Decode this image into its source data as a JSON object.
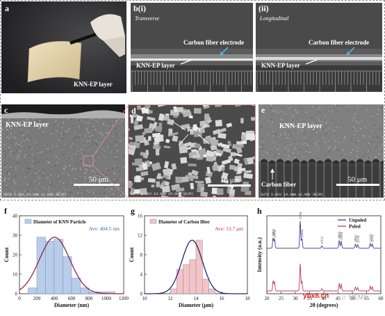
{
  "panels": {
    "a": {
      "label": "a",
      "caption": "KNN-EP layer"
    },
    "b1": {
      "label": "b(i)",
      "orientation": "Transverse",
      "electrode": "Carbon fiber electrode",
      "layer": "KNN-EP layer"
    },
    "b2": {
      "label": "(ii)",
      "orientation": "Longitudinal",
      "electrode": "Carbon fiber electrode",
      "layer": "KNN-EP layer"
    },
    "c": {
      "label": "c",
      "layer": "KNN-EP layer",
      "scale": "50 μm",
      "footer": "SU70 5.0kV 14.5mm x1.00k SE(M)"
    },
    "d": {
      "label": "d",
      "particle": "KNN",
      "scale": "10 μm",
      "footer": "SU70 5.0kV 14.4mm x5.00k SE(M)"
    },
    "e": {
      "label": "e",
      "layer": "KNN-EP layer",
      "fiber": "Carbon fiber",
      "scale": "50 μm",
      "footer": "SU70 5.0kV 14.4mm x1.00k SE(M)"
    },
    "f": {
      "label": "f"
    },
    "g": {
      "label": "g"
    },
    "h": {
      "label": "h"
    }
  },
  "chart_data": [
    {
      "type": "bar",
      "panel": "f",
      "xlabel": "Diameter (nm)",
      "ylabel": "Count",
      "xlim": [
        0,
        1200
      ],
      "ylim": [
        0,
        40
      ],
      "xticks": [
        0,
        200,
        400,
        600,
        800,
        1000,
        1200
      ],
      "yticks": [
        0,
        10,
        20,
        30,
        40
      ],
      "legend": "Diameter of KNN Particle",
      "legend_position": "top-right",
      "average_label": "Ave: 404.5 nm",
      "bin_width": 100,
      "bins_start": [
        100,
        200,
        300,
        400,
        500,
        600,
        700,
        800,
        900,
        1000
      ],
      "counts": [
        3,
        29,
        27,
        28,
        19,
        8,
        3,
        1,
        1,
        1
      ],
      "fit": {
        "type": "gaussian",
        "mean": 404.5,
        "sigma": 175,
        "peak": 29
      },
      "bar_color": "#b8cdea",
      "fit_color": "#8b2252"
    },
    {
      "type": "bar",
      "panel": "g",
      "xlabel": "Diameter (μm)",
      "ylabel": "Count",
      "xlim": [
        10,
        18
      ],
      "ylim": [
        0,
        16
      ],
      "xticks": [
        10,
        12,
        14,
        16,
        18
      ],
      "yticks": [
        0,
        4,
        8,
        12,
        16
      ],
      "legend": "Diameter of Carbon fiber",
      "legend_position": "top-right",
      "average_label": "Ave: 13.7 μm",
      "bin_width": 0.5,
      "bins_start": [
        12.0,
        12.5,
        13.0,
        13.5,
        14.0,
        14.5,
        15.0
      ],
      "counts": [
        1,
        5,
        6,
        7,
        11,
        3,
        1
      ],
      "fit": {
        "type": "gaussian",
        "mean": 13.7,
        "sigma": 0.8,
        "peak": 11
      },
      "bar_color": "#f4c3c6",
      "fit_color": "#23236e"
    },
    {
      "type": "line",
      "panel": "h",
      "xlabel": "2θ (degrees)",
      "ylabel": "Intensity (a.u.)",
      "xlim": [
        20,
        60
      ],
      "xticks": [
        20,
        25,
        30,
        35,
        40,
        45,
        50,
        55,
        60
      ],
      "legend_position": "top-right",
      "series": [
        {
          "name": "Unpoled",
          "color": "#3a3f8f",
          "offset": 0.55
        },
        {
          "name": "Poled",
          "color": "#c8374f",
          "offset": 0.0
        }
      ],
      "peaks": [
        {
          "x": 22.2,
          "label": "(001)",
          "h": 0.3
        },
        {
          "x": 22.7,
          "label": "(100)",
          "h": 0.26
        },
        {
          "x": 31.7,
          "label": "(110)",
          "h": 0.8
        },
        {
          "x": 32.3,
          "label": "(101)",
          "h": 0.28
        },
        {
          "x": 39.3,
          "label": "(111)",
          "h": 0.07
        },
        {
          "x": 45.4,
          "label": "(002)",
          "h": 0.22
        },
        {
          "x": 46.1,
          "label": "(200)",
          "h": 0.2
        },
        {
          "x": 51.1,
          "label": "(201)",
          "h": 0.12
        },
        {
          "x": 51.9,
          "label": "(210)",
          "h": 0.1
        },
        {
          "x": 56.3,
          "label": "(112)",
          "h": 0.14
        },
        {
          "x": 57.0,
          "label": "(211)",
          "h": 0.12
        }
      ]
    }
  ],
  "watermark": {
    "left": "ybx8.cn",
    "right": "MEMS"
  }
}
